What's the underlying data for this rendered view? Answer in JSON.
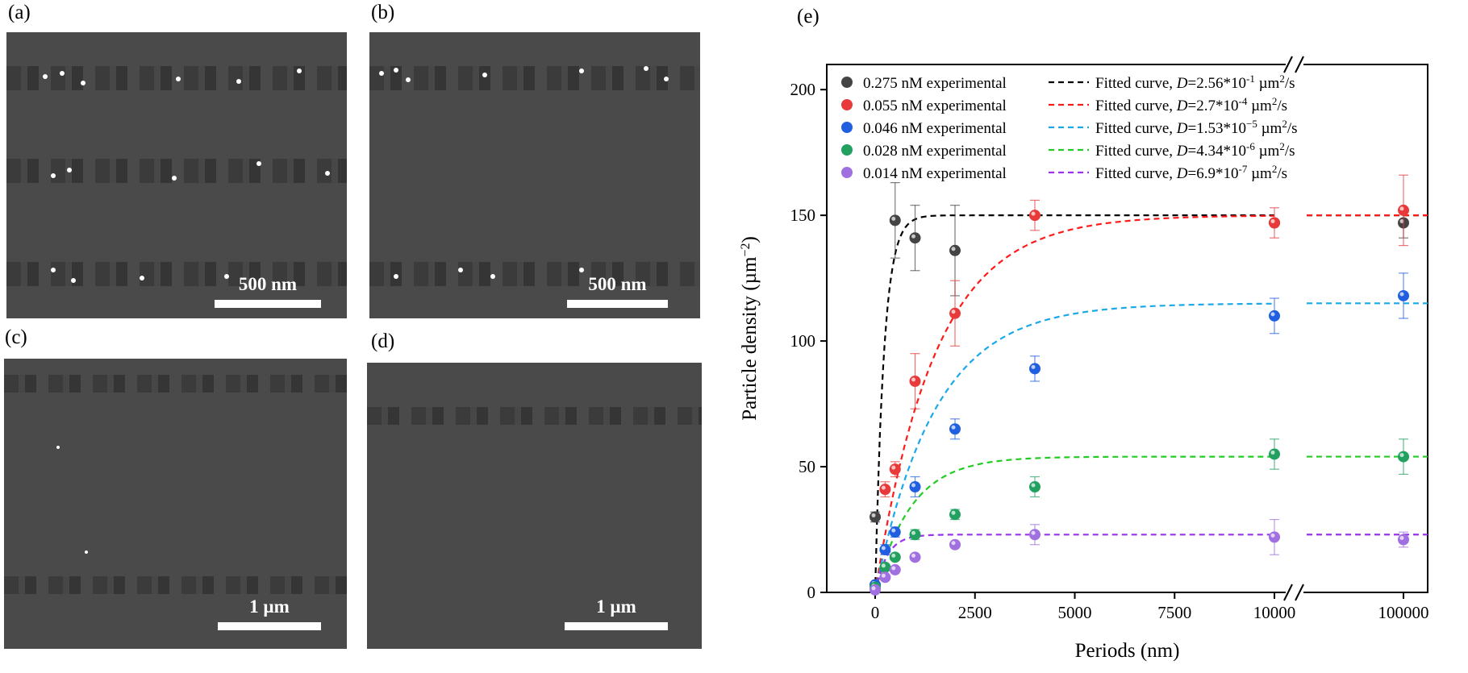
{
  "panels": {
    "a": {
      "label": "(a)",
      "scale": "500 nm"
    },
    "b": {
      "label": "(b)",
      "scale": "500 nm"
    },
    "c": {
      "label": "(c)",
      "scale": "1 µm"
    },
    "d": {
      "label": "(d)",
      "scale": "1 µm"
    },
    "e": {
      "label": "(e)"
    }
  },
  "chart_data": {
    "type": "scatter",
    "xlabel": "Periods (nm)",
    "ylabel": "Particle density (µm",
    "ylabel_sup": "−2",
    "ylabel_end": ")",
    "ylim": [
      0,
      210
    ],
    "y_ticks": [
      0,
      50,
      100,
      150,
      200
    ],
    "x_ticks": [
      "0",
      "2500",
      "5000",
      "7500",
      "10000",
      "100000"
    ],
    "x_axis_break": "between 10000 and 100000",
    "grid": false,
    "legend_placement": "top",
    "series": [
      {
        "name": "0.275 nM experimental",
        "color": "#444444",
        "points": [
          [
            0,
            30
          ],
          [
            500,
            148
          ],
          [
            1000,
            141
          ],
          [
            2000,
            136
          ],
          [
            10000,
            147
          ],
          [
            100000,
            147
          ]
        ],
        "errors": [
          2,
          15,
          13,
          18,
          0,
          6
        ],
        "fit": {
          "label": "Fitted curve, ",
          "D": "D",
          "value": "=2.56*10",
          "exp": "-1",
          "unit": " µm",
          "unit_exp": "2",
          "unit_end": "/s",
          "color": "#000000",
          "plateau": 150
        }
      },
      {
        "name": "0.055 nM experimental",
        "color": "#e83a3a",
        "points": [
          [
            0,
            3
          ],
          [
            250,
            41
          ],
          [
            500,
            49
          ],
          [
            1000,
            84
          ],
          [
            2000,
            111
          ],
          [
            4000,
            150
          ],
          [
            10000,
            147
          ],
          [
            100000,
            152
          ]
        ],
        "errors": [
          1,
          3,
          3,
          11,
          13,
          6,
          6,
          14
        ],
        "fit": {
          "label": "Fitted curve, ",
          "D": "D",
          "value": "=2.7*10",
          "exp": "-4",
          "unit": " µm",
          "unit_exp": "2",
          "unit_end": "/s",
          "color": "#ff1a1a",
          "plateau": 150
        }
      },
      {
        "name": "0.046 nM experimental",
        "color": "#2060e0",
        "points": [
          [
            0,
            3
          ],
          [
            250,
            17
          ],
          [
            500,
            24
          ],
          [
            1000,
            42
          ],
          [
            2000,
            65
          ],
          [
            4000,
            89
          ],
          [
            10000,
            110
          ],
          [
            100000,
            118
          ]
        ],
        "errors": [
          1,
          2,
          2,
          4,
          4,
          5,
          7,
          9
        ],
        "fit": {
          "label": "Fitted curve, ",
          "D": "D",
          "value": "=1.53*10",
          "exp": "−5",
          "unit": " µm",
          "unit_exp": "2",
          "unit_end": "/s",
          "color": "#1aa8e8",
          "plateau": 115
        }
      },
      {
        "name": "0.028 nM experimental",
        "color": "#22a060",
        "points": [
          [
            0,
            2
          ],
          [
            250,
            10
          ],
          [
            500,
            14
          ],
          [
            1000,
            23
          ],
          [
            2000,
            31
          ],
          [
            4000,
            42
          ],
          [
            10000,
            55
          ],
          [
            100000,
            54
          ]
        ],
        "errors": [
          1,
          1,
          1,
          2,
          2,
          4,
          6,
          7
        ],
        "fit": {
          "label": "Fitted curve, ",
          "D": "D",
          "value": "=4.34*10",
          "exp": "-6",
          "unit": " µm",
          "unit_exp": "2",
          "unit_end": "/s",
          "color": "#22cc22",
          "plateau": 54
        }
      },
      {
        "name": "0.014 nM experimental",
        "color": "#a070e0",
        "points": [
          [
            0,
            1
          ],
          [
            250,
            6
          ],
          [
            500,
            9
          ],
          [
            1000,
            14
          ],
          [
            2000,
            19
          ],
          [
            4000,
            23
          ],
          [
            10000,
            22
          ],
          [
            100000,
            21
          ]
        ],
        "errors": [
          1,
          1,
          1,
          1,
          1,
          4,
          7,
          3
        ],
        "fit": {
          "label": "Fitted curve, ",
          "D": "D",
          "value": "=6.9*10",
          "exp": "-7",
          "unit": " µm",
          "unit_exp": "2",
          "unit_end": "/s",
          "color": "#9933ee",
          "plateau": 23
        }
      }
    ]
  }
}
